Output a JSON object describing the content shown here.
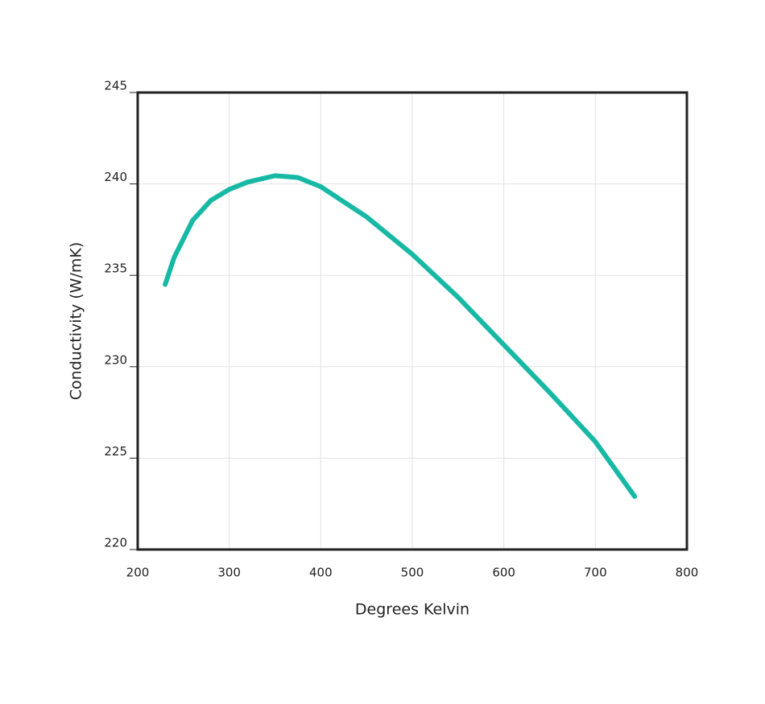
{
  "chart_data": {
    "type": "line",
    "x_label": "Degrees Kelvin",
    "y_label": "Conductivity (W/mK)",
    "series": [
      {
        "color": "#17b9a5",
        "x": [
          230,
          240,
          260,
          280,
          300,
          320,
          350,
          375,
          400,
          450,
          500,
          550,
          600,
          650,
          700,
          743
        ],
        "values": [
          234.5,
          236.0,
          238.0,
          239.1,
          239.7,
          240.1,
          240.45,
          240.35,
          239.85,
          238.2,
          236.15,
          233.8,
          231.2,
          228.6,
          225.9,
          222.9
        ]
      }
    ],
    "xlim": [
      200,
      800
    ],
    "xticks": [
      200,
      300,
      400,
      500,
      600,
      700,
      800
    ],
    "ylim": [
      220,
      245
    ],
    "yticks": [
      220,
      225,
      230,
      235,
      240,
      245
    ],
    "grid": true
  }
}
